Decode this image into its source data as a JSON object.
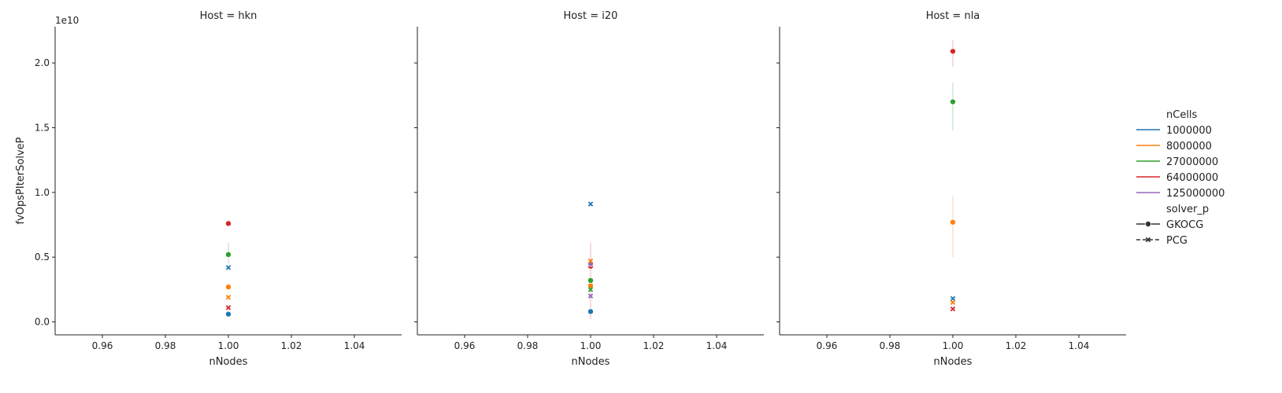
{
  "chart_data": {
    "type": "scatter",
    "facet_variable": "Host",
    "facets": [
      {
        "title": "Host = hkn",
        "host": "hkn",
        "points": [
          {
            "nCells": "1000000",
            "solver": "GKOCG",
            "x": 1.0,
            "y": 600000000.0
          },
          {
            "nCells": "8000000",
            "solver": "GKOCG",
            "x": 1.0,
            "y": 2700000000.0
          },
          {
            "nCells": "27000000",
            "solver": "GKOCG",
            "x": 1.0,
            "y": 5200000000.0
          },
          {
            "nCells": "64000000",
            "solver": "GKOCG",
            "x": 1.0,
            "y": 7600000000.0
          },
          {
            "nCells": "1000000",
            "solver": "PCG",
            "x": 1.0,
            "y": 4200000000.0
          },
          {
            "nCells": "8000000",
            "solver": "PCG",
            "x": 1.0,
            "y": 1900000000.0
          },
          {
            "nCells": "64000000",
            "solver": "PCG",
            "x": 1.0,
            "y": 1100000000.0
          }
        ],
        "error_bars": [
          {
            "nCells": "27000000",
            "lo": 4500000000.0,
            "hi": 6100000000.0
          }
        ]
      },
      {
        "title": "Host = i20",
        "host": "i20",
        "points": [
          {
            "nCells": "1000000",
            "solver": "GKOCG",
            "x": 1.0,
            "y": 800000000.0
          },
          {
            "nCells": "8000000",
            "solver": "GKOCG",
            "x": 1.0,
            "y": 2800000000.0
          },
          {
            "nCells": "27000000",
            "solver": "GKOCG",
            "x": 1.0,
            "y": 3200000000.0
          },
          {
            "nCells": "64000000",
            "solver": "GKOCG",
            "x": 1.0,
            "y": 4300000000.0
          },
          {
            "nCells": "125000000",
            "solver": "GKOCG",
            "x": 1.0,
            "y": 4500000000.0
          },
          {
            "nCells": "1000000",
            "solver": "PCG",
            "x": 1.0,
            "y": 9100000000.0
          },
          {
            "nCells": "8000000",
            "solver": "PCG",
            "x": 1.0,
            "y": 4700000000.0
          },
          {
            "nCells": "27000000",
            "solver": "PCG",
            "x": 1.0,
            "y": 2500000000.0
          },
          {
            "nCells": "125000000",
            "solver": "PCG",
            "x": 1.0,
            "y": 2000000000.0
          }
        ],
        "error_bars": [
          {
            "nCells": "64000000",
            "lo": 200000000.0,
            "hi": 6100000000.0
          }
        ]
      },
      {
        "title": "Host = nla",
        "host": "nla",
        "points": [
          {
            "nCells": "64000000",
            "solver": "GKOCG",
            "x": 1.0,
            "y": 20900000000.0
          },
          {
            "nCells": "27000000",
            "solver": "GKOCG",
            "x": 1.0,
            "y": 17000000000.0
          },
          {
            "nCells": "8000000",
            "solver": "GKOCG",
            "x": 1.0,
            "y": 7700000000.0
          },
          {
            "nCells": "1000000",
            "solver": "PCG",
            "x": 1.0,
            "y": 1800000000.0
          },
          {
            "nCells": "8000000",
            "solver": "PCG",
            "x": 1.0,
            "y": 1500000000.0
          },
          {
            "nCells": "64000000",
            "solver": "PCG",
            "x": 1.0,
            "y": 1000000000.0
          }
        ],
        "error_bars": [
          {
            "nCells": "64000000",
            "lo": 19700000000.0,
            "hi": 21800000000.0
          },
          {
            "nCells": "27000000",
            "lo": 14800000000.0,
            "hi": 18500000000.0
          },
          {
            "nCells": "8000000",
            "lo": 5000000000.0,
            "hi": 9700000000.0
          }
        ]
      }
    ],
    "xlabel": "nNodes",
    "ylabel": "fvOpsPIterSolveP",
    "y_offset_label": "1e10",
    "xlim": [
      0.945,
      1.055
    ],
    "ylim": [
      -1000000000.0,
      22800000000.0
    ],
    "x_ticks": [
      0.96,
      0.98,
      1.0,
      1.02,
      1.04
    ],
    "x_tick_labels": [
      "0.96",
      "0.98",
      "1.00",
      "1.02",
      "1.04"
    ],
    "y_ticks": [
      0,
      5000000000.0,
      10000000000.0,
      15000000000.0,
      20000000000.0
    ],
    "y_tick_labels": [
      "0.0",
      "0.5",
      "1.0",
      "1.5",
      "2.0"
    ],
    "grid": false,
    "legend": {
      "placement": "right",
      "hue_title": "nCells",
      "hue_entries": [
        {
          "label": "1000000",
          "color": "#1f77b4"
        },
        {
          "label": "8000000",
          "color": "#ff7f0e"
        },
        {
          "label": "27000000",
          "color": "#2ca02c"
        },
        {
          "label": "64000000",
          "color": "#d62728"
        },
        {
          "label": "125000000",
          "color": "#9467bd"
        }
      ],
      "style_title": "solver_p",
      "style_entries": [
        {
          "label": "GKOCG",
          "marker": "circle",
          "line": "solid"
        },
        {
          "label": "PCG",
          "marker": "x",
          "line": "dashed"
        }
      ]
    }
  }
}
